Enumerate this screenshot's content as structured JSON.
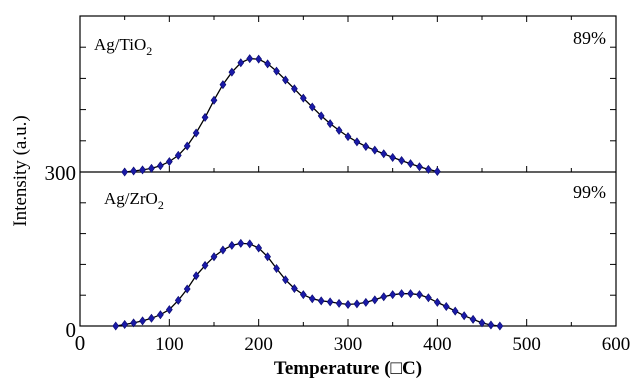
{
  "chart_data": {
    "type": "line",
    "xlabel": "Temperature (□C)",
    "ylabel": "Intensity (a.u.)",
    "xlim": [
      0,
      600
    ],
    "xticks": [
      "0",
      "100",
      "200",
      "300",
      "400",
      "500",
      "600"
    ],
    "y_tick_labels": [
      "0",
      "300"
    ],
    "series": [
      {
        "name": "Ag/TiO₂",
        "panel_label_main": "Ag/TiO",
        "panel_label_sub": "2",
        "percent": "89%",
        "ylim": [
          300,
          600
        ],
        "x": [
          50,
          60,
          70,
          80,
          90,
          100,
          110,
          120,
          130,
          140,
          150,
          160,
          170,
          180,
          190,
          200,
          210,
          220,
          230,
          240,
          250,
          260,
          270,
          280,
          290,
          300,
          310,
          320,
          330,
          340,
          350,
          360,
          370,
          380,
          390,
          400
        ],
        "y": [
          300,
          302,
          304,
          307,
          312,
          320,
          332,
          350,
          375,
          405,
          438,
          468,
          492,
          510,
          518,
          517,
          508,
          494,
          477,
          460,
          442,
          425,
          408,
          393,
          380,
          368,
          358,
          349,
          342,
          335,
          328,
          322,
          316,
          310,
          305,
          301
        ]
      },
      {
        "name": "Ag/ZrO₂",
        "panel_label_main": "Ag/ZrO",
        "panel_label_sub": "2",
        "percent": "99%",
        "ylim": [
          0,
          300
        ],
        "x": [
          40,
          50,
          60,
          70,
          80,
          90,
          100,
          110,
          120,
          130,
          140,
          150,
          160,
          170,
          180,
          190,
          200,
          210,
          220,
          230,
          240,
          250,
          260,
          270,
          280,
          290,
          300,
          310,
          320,
          330,
          340,
          350,
          360,
          370,
          380,
          390,
          400,
          410,
          420,
          430,
          440,
          450,
          460,
          470
        ],
        "y": [
          0,
          3,
          6,
          10,
          15,
          22,
          32,
          50,
          72,
          98,
          118,
          135,
          148,
          157,
          161,
          160,
          152,
          135,
          112,
          90,
          73,
          61,
          53,
          49,
          47,
          44,
          42,
          43,
          46,
          51,
          57,
          61,
          63,
          63,
          61,
          55,
          46,
          38,
          29,
          20,
          13,
          6,
          2,
          0
        ]
      }
    ],
    "line_color": "#000000",
    "marker_color": "#1a1aa6",
    "grid": false,
    "legend": "none"
  }
}
